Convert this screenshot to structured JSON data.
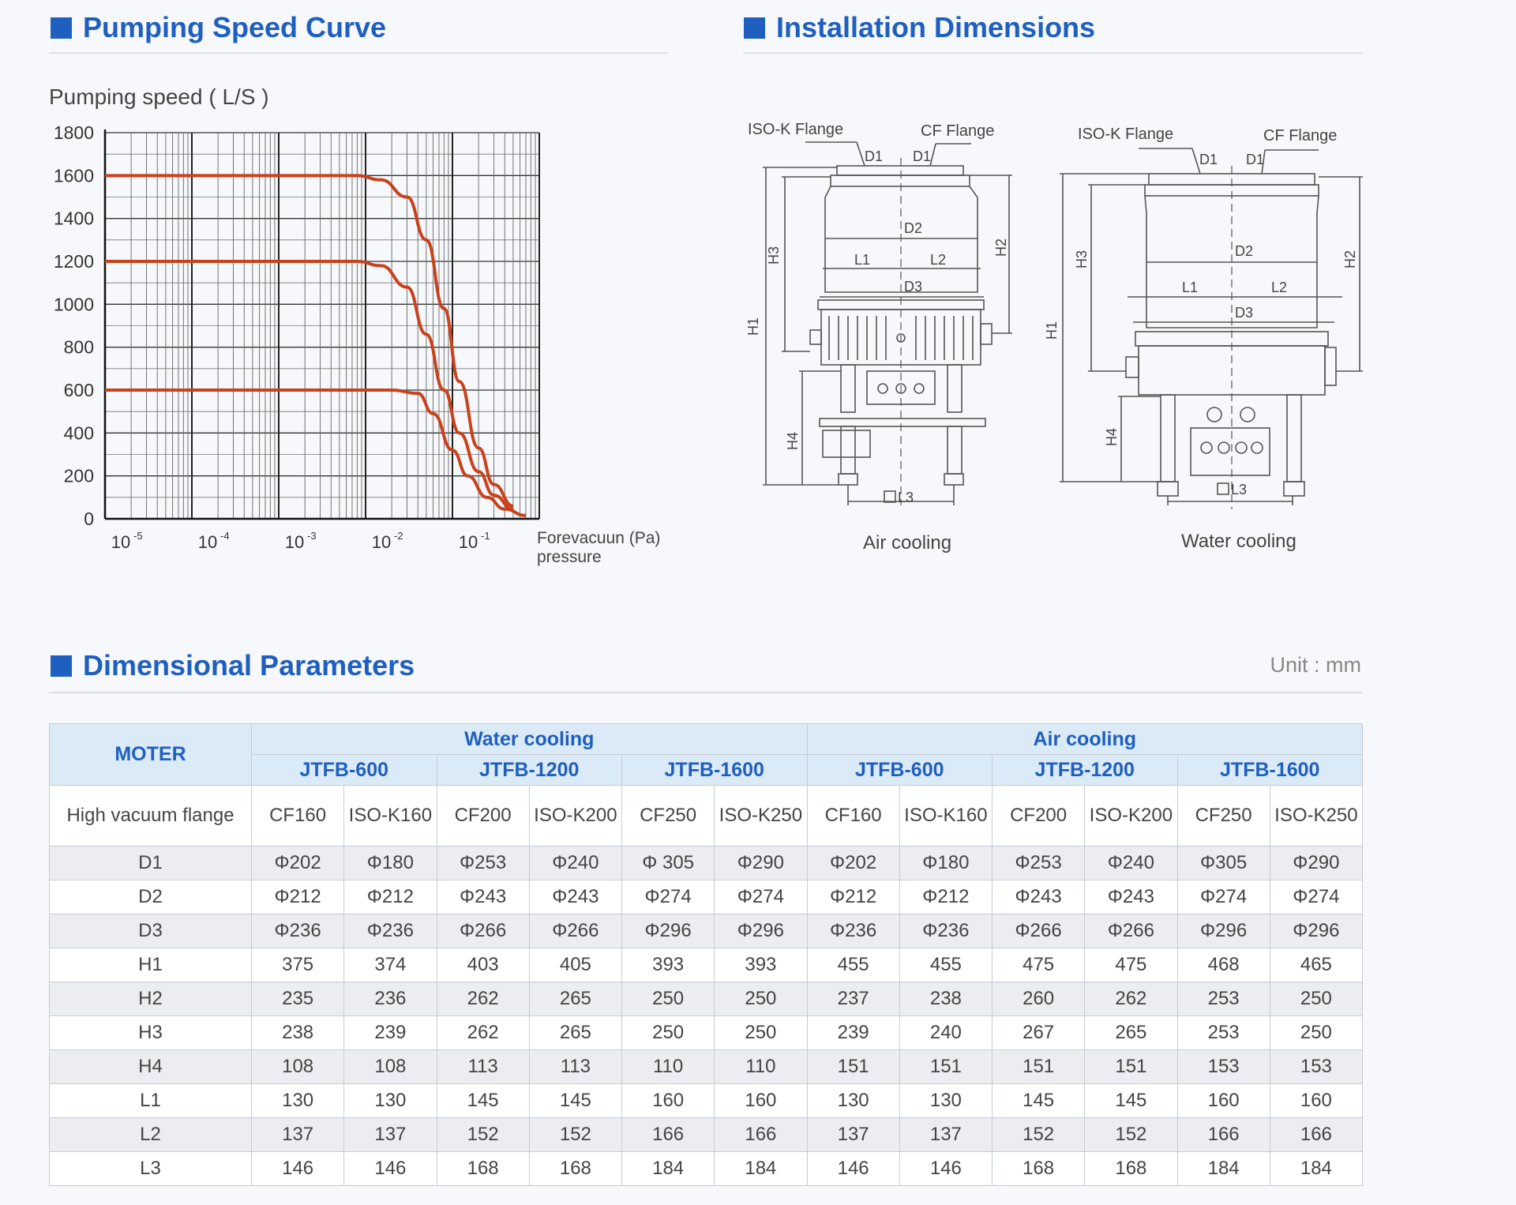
{
  "sections": {
    "pumping": "Pumping Speed Curve",
    "installation": "Installation Dimensions",
    "params": "Dimensional Parameters"
  },
  "unit": "Unit : mm",
  "chart_data": {
    "type": "line",
    "title": "",
    "ylabel": "Pumping speed ( L/S )",
    "xlabel": "Forevacuun (Pa) pressure",
    "xlabel_lines": [
      "Forevacuun (Pa)",
      "pressure"
    ],
    "xscale": "log",
    "xlim": [
      1e-05,
      1
    ],
    "ylim": [
      0,
      1800
    ],
    "yticks": [
      "0",
      "200",
      "400",
      "600",
      "800",
      "1000",
      "1200",
      "1400",
      "1600",
      "1800"
    ],
    "xticks": [
      {
        "base": "10",
        "exp": "-5",
        "value": 1e-05
      },
      {
        "base": "10",
        "exp": "-4",
        "value": 0.0001
      },
      {
        "base": "10",
        "exp": "-3",
        "value": 0.001
      },
      {
        "base": "10",
        "exp": "-2",
        "value": 0.01
      },
      {
        "base": "10",
        "exp": "-1",
        "value": 0.1
      }
    ],
    "grid": true,
    "series_color": "#c8421c",
    "series": [
      {
        "x": [
          1e-05,
          0.001,
          0.008,
          0.015,
          0.03,
          0.05,
          0.08,
          0.12,
          0.2,
          0.3,
          0.5
        ],
        "values": [
          1600,
          1600,
          1600,
          1580,
          1500,
          1300,
          980,
          640,
          330,
          160,
          60
        ]
      },
      {
        "x": [
          1e-05,
          0.001,
          0.008,
          0.015,
          0.03,
          0.05,
          0.08,
          0.12,
          0.2,
          0.3,
          0.5
        ],
        "values": [
          1200,
          1200,
          1200,
          1180,
          1080,
          860,
          600,
          400,
          220,
          110,
          45
        ]
      },
      {
        "x": [
          1e-05,
          0.001,
          0.008,
          0.02,
          0.04,
          0.06,
          0.1,
          0.15,
          0.25,
          0.4,
          0.7
        ],
        "values": [
          600,
          600,
          600,
          600,
          585,
          490,
          320,
          200,
          100,
          45,
          15
        ]
      }
    ]
  },
  "diagram": {
    "air": {
      "caption": "Air cooling",
      "isok": "ISO-K Flange",
      "cf": "CF Flange"
    },
    "water": {
      "caption": "Water cooling",
      "isok": "ISO-K Flange",
      "cf": "CF Flange"
    },
    "labels": {
      "d1": "D1",
      "d2": "D2",
      "d3": "D3",
      "h1": "H1",
      "h2": "H2",
      "h3": "H3",
      "h4": "H4",
      "l1": "L1",
      "l2": "L2",
      "l3": "L3"
    }
  },
  "table": {
    "moter": "MOTER",
    "water": "Water cooling",
    "air": "Air cooling",
    "models": [
      "JTFB-600",
      "JTFB-1200",
      "JTFB-1600",
      "JTFB-600",
      "JTFB-1200",
      "JTFB-1600"
    ],
    "flange_label": "High vacuum flange",
    "flanges": [
      "CF160",
      "ISO-K160",
      "CF200",
      "ISO-K200",
      "CF250",
      "ISO-K250",
      "CF160",
      "ISO-K160",
      "CF200",
      "ISO-K200",
      "CF250",
      "ISO-K250"
    ],
    "rows": [
      {
        "label": "D1",
        "values": [
          "Φ202",
          "Φ180",
          "Φ253",
          "Φ240",
          "Φ 305",
          "Φ290",
          "Φ202",
          "Φ180",
          "Φ253",
          "Φ240",
          "Φ305",
          "Φ290"
        ]
      },
      {
        "label": "D2",
        "values": [
          "Φ212",
          "Φ212",
          "Φ243",
          "Φ243",
          "Φ274",
          "Φ274",
          "Φ212",
          "Φ212",
          "Φ243",
          "Φ243",
          "Φ274",
          "Φ274"
        ]
      },
      {
        "label": "D3",
        "values": [
          "Φ236",
          "Φ236",
          "Φ266",
          "Φ266",
          "Φ296",
          "Φ296",
          "Φ236",
          "Φ236",
          "Φ266",
          "Φ266",
          "Φ296",
          "Φ296"
        ]
      },
      {
        "label": "H1",
        "values": [
          "375",
          "374",
          "403",
          "405",
          "393",
          "393",
          "455",
          "455",
          "475",
          "475",
          "468",
          "465"
        ]
      },
      {
        "label": "H2",
        "values": [
          "235",
          "236",
          "262",
          "265",
          "250",
          "250",
          "237",
          "238",
          "260",
          "262",
          "253",
          "250"
        ]
      },
      {
        "label": "H3",
        "values": [
          "238",
          "239",
          "262",
          "265",
          "250",
          "250",
          "239",
          "240",
          "267",
          "265",
          "253",
          "250"
        ]
      },
      {
        "label": "H4",
        "values": [
          "108",
          "108",
          "113",
          "113",
          "110",
          "110",
          "151",
          "151",
          "151",
          "151",
          "153",
          "153"
        ]
      },
      {
        "label": "L1",
        "values": [
          "130",
          "130",
          "145",
          "145",
          "160",
          "160",
          "130",
          "130",
          "145",
          "145",
          "160",
          "160"
        ]
      },
      {
        "label": "L2",
        "values": [
          "137",
          "137",
          "152",
          "152",
          "166",
          "166",
          "137",
          "137",
          "152",
          "152",
          "166",
          "166"
        ]
      },
      {
        "label": "L3",
        "values": [
          "146",
          "146",
          "168",
          "168",
          "184",
          "184",
          "146",
          "146",
          "168",
          "168",
          "184",
          "184"
        ]
      }
    ]
  }
}
